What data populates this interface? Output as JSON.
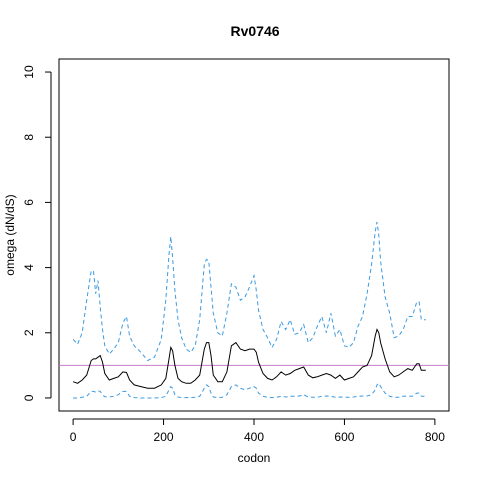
{
  "chart_data": {
    "type": "line",
    "title": "Rv0746",
    "xlabel": "codon",
    "ylabel": "omega (dN/dS)",
    "xlim": [
      0,
      800
    ],
    "ylim": [
      0,
      10
    ],
    "xticks": [
      0,
      200,
      400,
      600,
      800
    ],
    "yticks": [
      0,
      2,
      4,
      6,
      8,
      10
    ],
    "grid": false,
    "reference_line": {
      "y": 1,
      "color": "#cc79c9"
    },
    "series": [
      {
        "role": "upper",
        "color": "#3b9ae1",
        "style": "dashed",
        "x": [
          0,
          10,
          20,
          30,
          40,
          45,
          50,
          55,
          60,
          65,
          70,
          80,
          90,
          100,
          110,
          118,
          125,
          135,
          150,
          165,
          180,
          195,
          205,
          212,
          216,
          220,
          225,
          232,
          240,
          250,
          260,
          270,
          280,
          290,
          295,
          300,
          305,
          310,
          320,
          330,
          340,
          350,
          360,
          370,
          380,
          390,
          400,
          405,
          410,
          420,
          430,
          440,
          450,
          460,
          470,
          480,
          490,
          500,
          510,
          520,
          530,
          540,
          550,
          560,
          570,
          580,
          590,
          600,
          610,
          620,
          630,
          640,
          650,
          660,
          668,
          672,
          676,
          680,
          690,
          700,
          710,
          720,
          730,
          740,
          750,
          760,
          765,
          770,
          780
        ],
        "y": [
          1.8,
          1.65,
          2.0,
          3.0,
          3.9,
          3.9,
          3.2,
          3.6,
          2.8,
          2.1,
          1.6,
          1.35,
          1.5,
          1.7,
          2.3,
          2.5,
          1.9,
          1.6,
          1.4,
          1.15,
          1.25,
          1.8,
          3.0,
          4.4,
          4.95,
          4.3,
          3.3,
          2.4,
          1.85,
          1.5,
          1.4,
          1.6,
          2.4,
          4.1,
          4.25,
          4.2,
          3.4,
          2.6,
          2.0,
          1.9,
          2.6,
          3.5,
          3.4,
          3.0,
          3.1,
          3.4,
          3.75,
          3.3,
          2.7,
          2.1,
          1.85,
          1.55,
          1.8,
          2.35,
          2.1,
          2.4,
          1.95,
          2.0,
          2.25,
          1.7,
          1.85,
          2.2,
          2.5,
          2.0,
          2.6,
          1.9,
          2.1,
          1.6,
          1.55,
          1.7,
          2.2,
          2.5,
          3.2,
          4.1,
          5.1,
          5.4,
          5.0,
          4.2,
          3.1,
          2.6,
          1.85,
          1.9,
          2.1,
          2.5,
          2.5,
          2.95,
          2.95,
          2.4,
          2.4
        ]
      },
      {
        "role": "estimate",
        "color": "#000000",
        "style": "solid",
        "x": [
          0,
          10,
          20,
          30,
          40,
          45,
          50,
          55,
          60,
          65,
          70,
          80,
          90,
          100,
          110,
          118,
          125,
          135,
          150,
          165,
          180,
          195,
          205,
          212,
          216,
          220,
          225,
          232,
          240,
          250,
          260,
          270,
          280,
          290,
          295,
          300,
          305,
          310,
          320,
          330,
          340,
          350,
          360,
          370,
          380,
          390,
          400,
          405,
          410,
          420,
          430,
          440,
          450,
          460,
          470,
          480,
          490,
          500,
          510,
          520,
          530,
          540,
          550,
          560,
          570,
          580,
          590,
          600,
          610,
          620,
          630,
          640,
          650,
          660,
          668,
          672,
          676,
          680,
          690,
          700,
          710,
          720,
          730,
          740,
          750,
          760,
          765,
          770,
          780
        ],
        "y": [
          0.5,
          0.45,
          0.55,
          0.7,
          1.15,
          1.2,
          1.2,
          1.25,
          1.3,
          1.1,
          0.75,
          0.55,
          0.6,
          0.65,
          0.8,
          0.78,
          0.55,
          0.4,
          0.35,
          0.3,
          0.3,
          0.4,
          0.6,
          1.2,
          1.55,
          1.45,
          1.0,
          0.6,
          0.5,
          0.45,
          0.45,
          0.55,
          0.7,
          1.5,
          1.7,
          1.7,
          1.3,
          0.7,
          0.5,
          0.5,
          0.8,
          1.6,
          1.7,
          1.5,
          1.45,
          1.5,
          1.5,
          1.4,
          1.1,
          0.75,
          0.6,
          0.55,
          0.65,
          0.8,
          0.7,
          0.75,
          0.85,
          0.9,
          0.95,
          0.7,
          0.62,
          0.65,
          0.7,
          0.75,
          0.7,
          0.6,
          0.7,
          0.55,
          0.6,
          0.65,
          0.8,
          0.95,
          1.0,
          1.3,
          1.9,
          2.1,
          2.0,
          1.7,
          1.2,
          0.8,
          0.65,
          0.7,
          0.8,
          0.9,
          0.85,
          1.05,
          1.05,
          0.85,
          0.85
        ]
      },
      {
        "role": "lower",
        "color": "#3b9ae1",
        "style": "dashed",
        "x": [
          0,
          10,
          20,
          30,
          40,
          45,
          50,
          55,
          60,
          65,
          70,
          80,
          90,
          100,
          110,
          118,
          125,
          135,
          150,
          165,
          180,
          195,
          205,
          212,
          216,
          220,
          225,
          232,
          240,
          250,
          260,
          270,
          280,
          290,
          295,
          300,
          305,
          310,
          320,
          330,
          340,
          350,
          360,
          370,
          380,
          390,
          400,
          405,
          410,
          420,
          430,
          440,
          450,
          460,
          470,
          480,
          490,
          500,
          510,
          520,
          530,
          540,
          550,
          560,
          570,
          580,
          590,
          600,
          610,
          620,
          630,
          640,
          650,
          660,
          668,
          672,
          676,
          680,
          690,
          700,
          710,
          720,
          730,
          740,
          750,
          760,
          765,
          770,
          780
        ],
        "y": [
          0.0,
          0.0,
          0.02,
          0.05,
          0.2,
          0.2,
          0.18,
          0.22,
          0.2,
          0.1,
          0.04,
          0.03,
          0.05,
          0.1,
          0.2,
          0.2,
          0.05,
          0.01,
          0.0,
          0.0,
          0.0,
          0.01,
          0.05,
          0.25,
          0.35,
          0.3,
          0.1,
          0.03,
          0.01,
          0.01,
          0.01,
          0.02,
          0.05,
          0.3,
          0.4,
          0.35,
          0.15,
          0.03,
          0.01,
          0.02,
          0.1,
          0.35,
          0.4,
          0.3,
          0.25,
          0.3,
          0.35,
          0.3,
          0.15,
          0.05,
          0.02,
          0.01,
          0.02,
          0.05,
          0.03,
          0.05,
          0.05,
          0.06,
          0.1,
          0.03,
          0.02,
          0.02,
          0.05,
          0.06,
          0.05,
          0.02,
          0.03,
          0.02,
          0.02,
          0.03,
          0.05,
          0.06,
          0.06,
          0.1,
          0.25,
          0.4,
          0.45,
          0.35,
          0.15,
          0.05,
          0.02,
          0.02,
          0.05,
          0.06,
          0.05,
          0.15,
          0.15,
          0.05,
          0.05
        ]
      }
    ]
  }
}
